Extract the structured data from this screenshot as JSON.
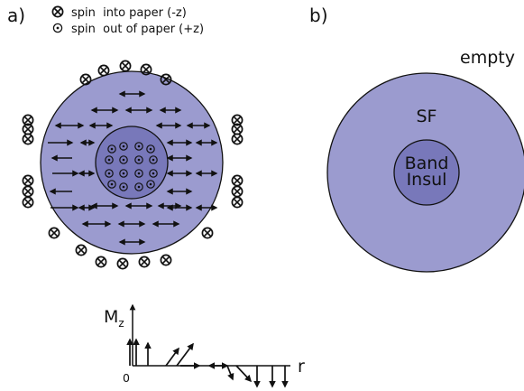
{
  "panel_a": {
    "label": "a)",
    "legend": [
      {
        "symbol": "cross-circle",
        "text": "spin  into paper (-z)"
      },
      {
        "symbol": "dot-circle",
        "text": "spin  out of paper (+z)"
      }
    ],
    "axis": {
      "y_label": "M",
      "y_label_sub": "z",
      "x_label": "r",
      "origin_label": "0"
    }
  },
  "panel_b": {
    "label": "b)",
    "regions": {
      "outer": "empty",
      "middle": "SF",
      "inner_line1": "Band",
      "inner_line2": "Insul"
    }
  },
  "colors": {
    "outer_disk": "#9b9bcf",
    "inner_disk": "#7878ba",
    "stroke": "#111111",
    "background": "#ffffff"
  }
}
